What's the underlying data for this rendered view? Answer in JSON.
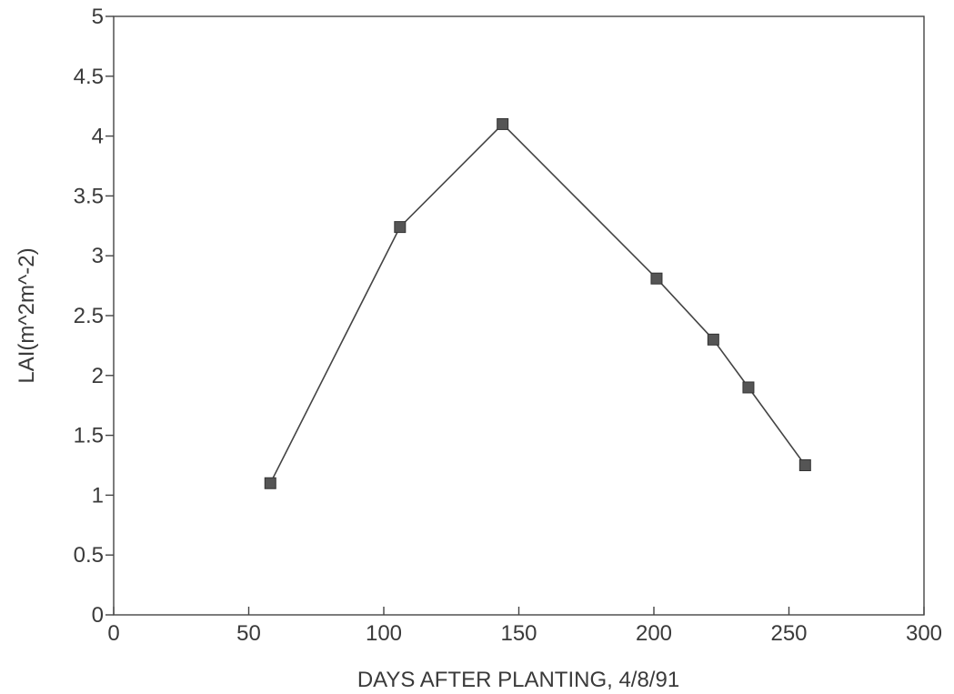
{
  "chart_data": {
    "type": "line",
    "title": "",
    "xlabel": "DAYS AFTER PLANTING, 4/8/91",
    "ylabel": "LAI(m^2m^-2)",
    "xlim": [
      0,
      300
    ],
    "ylim": [
      0,
      5
    ],
    "x_ticks": [
      0,
      50,
      100,
      150,
      200,
      250,
      300
    ],
    "y_ticks": [
      0,
      0.5,
      1,
      1.5,
      2,
      2.5,
      3,
      3.5,
      4,
      4.5,
      5
    ],
    "grid": false,
    "legend": "none",
    "series": [
      {
        "x": [
          58,
          106,
          144,
          201,
          222,
          235,
          256
        ],
        "y": [
          1.1,
          3.24,
          4.1,
          2.81,
          2.3,
          1.9,
          1.25
        ],
        "marker": "square",
        "color": "#555555"
      }
    ]
  }
}
